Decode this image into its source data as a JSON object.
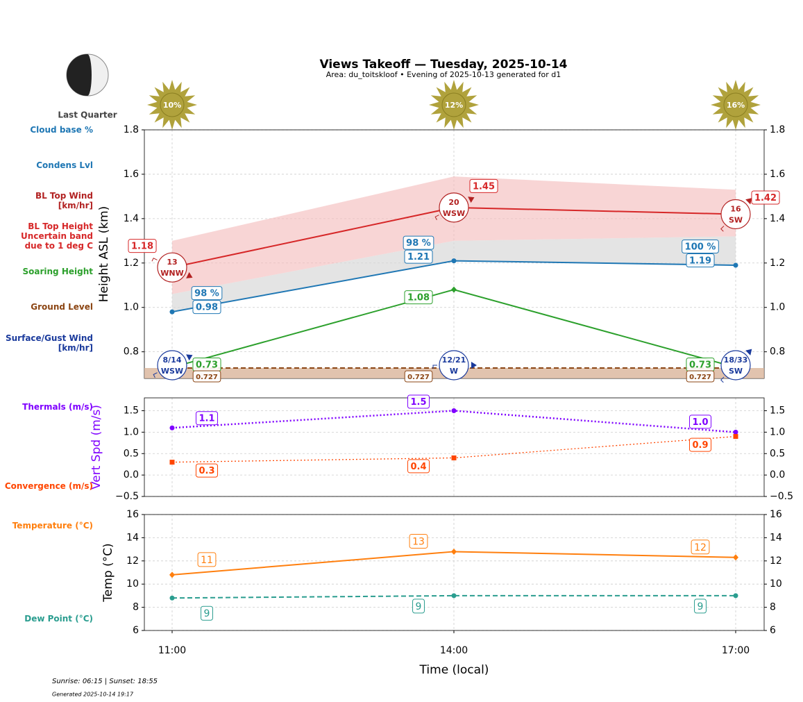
{
  "title": "Views Takeoff — Tuesday, 2025-10-14",
  "subtitle": "Area: du_toitskloof • Evening of 2025-10-13 generated for d1",
  "moon_phase": "Last Quarter",
  "sunrise_sunset": "Sunrise: 06:15 | Sunset: 18:55",
  "generated": "Generated 2025-10-14 19:17",
  "chart_data": [
    {
      "type": "line",
      "ylabel": "Height ASL (km)",
      "ylim": [
        0.68,
        1.8
      ],
      "yticks": [
        0.8,
        {
          "value": 1,
          "label": "1.0"
        },
        1.2,
        1.4,
        1.6,
        1.8
      ],
      "grid": true,
      "sun": {
        "values": [
          10,
          12,
          16
        ],
        "value_labels": [
          "10%",
          "12%",
          "16%"
        ],
        "color": "#b0a23c"
      },
      "series": [
        {
          "name": "Cloud base %",
          "color": "#1f77b4",
          "values": [
            98,
            98,
            100
          ],
          "value_labels": [
            "98 %",
            "98 %",
            "100 %"
          ]
        },
        {
          "name": "Condens Lvl",
          "color": "#1f77b4",
          "values": [
            0.98,
            1.21,
            1.19
          ],
          "marker": "circle",
          "fill": "#d9d9d9"
        },
        {
          "name": "BL Top Wind [km/hr]",
          "color": "#b22222",
          "values": [
            13,
            20,
            16
          ],
          "directions": [
            "WNW",
            "WSW",
            "SW"
          ]
        },
        {
          "name": "BL Top Height Uncertain band due to 1 deg C",
          "color": "#d62728",
          "values": [
            1.18,
            1.45,
            1.42
          ],
          "band_lower": [
            1.06,
            1.3,
            1.32
          ],
          "band_upper": [
            1.3,
            1.59,
            1.53
          ],
          "band_color": "#f4b9b9"
        },
        {
          "name": "Soaring Height",
          "color": "#2ca02c",
          "values": [
            0.73,
            1.08,
            0.73
          ],
          "marker": "diamond"
        },
        {
          "name": "Ground Level",
          "color": "#8b4513",
          "values": [
            0.727,
            0.727,
            0.727
          ],
          "dash": "dashed",
          "fill": "#d9b49a"
        },
        {
          "name": "Surface/Gust Wind [km/hr]",
          "color": "#1a3a9c",
          "values": [
            8,
            12,
            18
          ],
          "gusts": [
            14,
            21,
            33
          ],
          "value_labels": [
            "8/14",
            "12/21",
            "18/33"
          ],
          "directions": [
            "WSW",
            "W",
            "SW"
          ]
        }
      ]
    },
    {
      "type": "line",
      "ylabel": "Vert Spd (m/s)",
      "ylabel_color": "#7f00ff",
      "ylim": [
        -0.5,
        1.8
      ],
      "yticks": [
        {
          "value": -0.5,
          "label": "−0.5"
        },
        {
          "value": 0,
          "label": "0.0"
        },
        0.5,
        {
          "value": 1,
          "label": "1.0"
        },
        1.5
      ],
      "grid": true,
      "series": [
        {
          "name": "Thermals (m/s)",
          "color": "#7f00ff",
          "values": [
            1.1,
            1.5,
            1.0
          ],
          "value_labels": [
            "1.1",
            "1.5",
            "1.0"
          ],
          "dash": "dotted",
          "marker": "circle"
        },
        {
          "name": "Convergence (m/s)",
          "color": "#ff4500",
          "values": [
            0.3,
            0.4,
            0.9
          ],
          "dash": "dotted",
          "marker": "square"
        }
      ]
    },
    {
      "type": "line",
      "ylabel": "Temp (°C)",
      "xlabel": "Time (local)",
      "categories": [
        "11:00",
        "14:00",
        "17:00"
      ],
      "ylim": [
        6,
        16
      ],
      "yticks": [
        6,
        8,
        10,
        12,
        14,
        16
      ],
      "grid": true,
      "series": [
        {
          "name": "Temperature (°C)",
          "color": "#ff7f0e",
          "values": [
            10.8,
            12.8,
            12.3
          ],
          "value_labels": [
            "11",
            "13",
            "12"
          ],
          "marker": "diamond"
        },
        {
          "name": "Dew Point (°C)",
          "color": "#2a9d8f",
          "values": [
            8.8,
            9.0,
            9.0
          ],
          "value_labels": [
            "9",
            "9",
            "9"
          ],
          "dash": "dashed",
          "marker": "circle"
        }
      ]
    }
  ]
}
